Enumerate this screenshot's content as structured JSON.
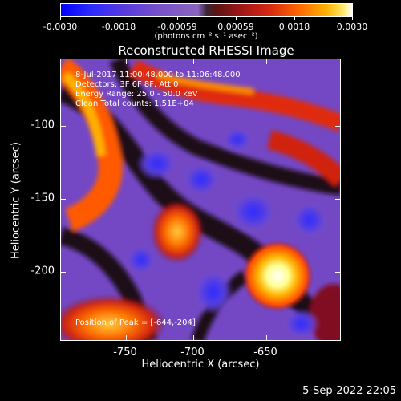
{
  "colorbar": {
    "tick_labels": [
      "-0.0030",
      "-0.0018",
      "-0.00059",
      "0.00059",
      "0.0018",
      "0.0030"
    ],
    "units": "(photons cm⁻² s⁻¹ asec⁻²)"
  },
  "title": "Reconstructed RHESSI Image",
  "annotations": {
    "time_range": "8-Jul-2017 11:00:48.000 to 11:06:48.000",
    "detectors": "Detectors: 3F 6F 8F, Att 0",
    "energy_range": "Energy Range: 25.0 - 50.0 keV",
    "clean_counts": "Clean     Total counts: 1.51E+04",
    "peak_position": "Position of Peak = [-644,-204]"
  },
  "axes": {
    "x_title": "Heliocentric X (arcsec)",
    "y_title": "Heliocentric Y (arcsec)",
    "x_tick_labels": [
      "-750",
      "-700",
      "-650"
    ],
    "y_tick_labels": [
      "-100",
      "-150",
      "-200"
    ]
  },
  "footer": {
    "date": "5-Sep-2022 22:05"
  },
  "colors": {
    "background": "#000000",
    "negative": "#0000ff",
    "neutral_negative": "#7a54c8",
    "positive_hot": "#ff6a00",
    "peak": "#ffffff"
  }
}
